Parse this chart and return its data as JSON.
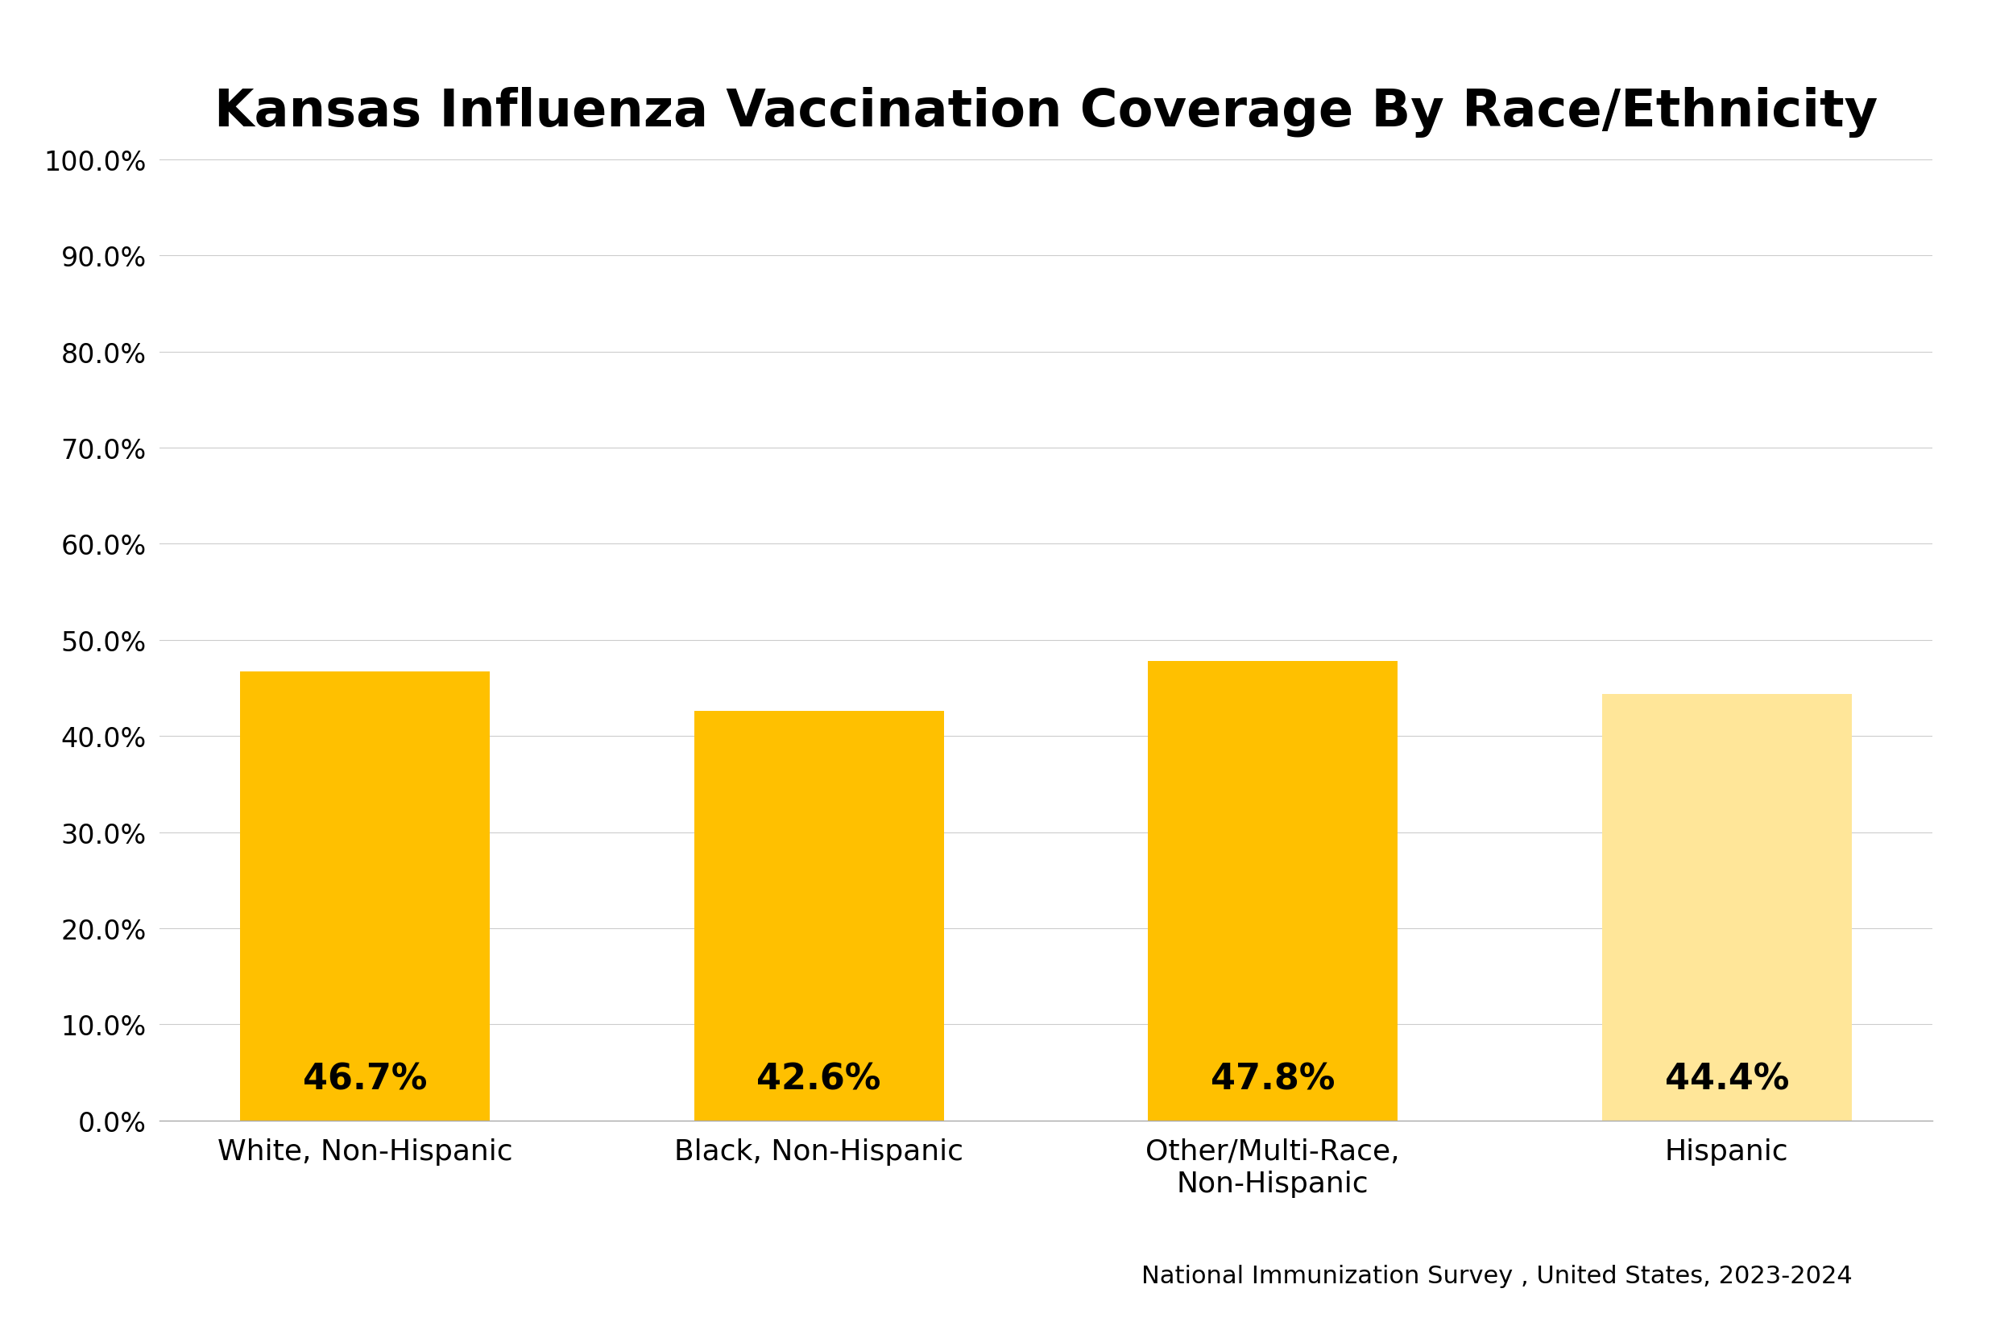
{
  "title": "Kansas Influenza Vaccination Coverage By Race/Ethnicity",
  "categories": [
    "White, Non-Hispanic",
    "Black, Non-Hispanic",
    "Other/Multi-Race,\nNon-Hispanic",
    "Hispanic"
  ],
  "values": [
    46.7,
    42.6,
    47.8,
    44.4
  ],
  "bar_colors": [
    "#FFC000",
    "#FFC000",
    "#FFC000",
    "#FFE699"
  ],
  "label_texts": [
    "46.7%",
    "42.6%",
    "47.8%",
    "44.4%"
  ],
  "ylabel_ticks": [
    0.0,
    10.0,
    20.0,
    30.0,
    40.0,
    50.0,
    60.0,
    70.0,
    80.0,
    90.0,
    100.0
  ],
  "ylabel_labels": [
    "0.0%",
    "10.0%",
    "20.0%",
    "30.0%",
    "40.0%",
    "50.0%",
    "60.0%",
    "70.0%",
    "80.0%",
    "90.0%",
    "100.0%"
  ],
  "ylim": [
    0,
    100
  ],
  "source_text": "National Immunization Survey , United States, 2023-2024",
  "background_color": "#ffffff",
  "title_fontsize": 46,
  "label_fontsize": 26,
  "tick_fontsize": 24,
  "source_fontsize": 22,
  "bar_label_fontsize": 32,
  "bar_width": 0.55
}
